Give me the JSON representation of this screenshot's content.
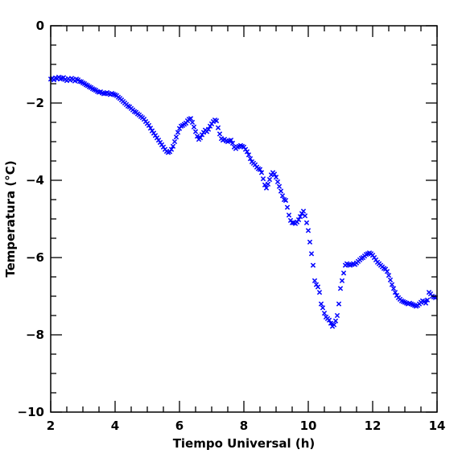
{
  "chart_data": {
    "type": "scatter",
    "title": "",
    "xlabel": "Tiempo Universal (h)",
    "ylabel": "Temperatura (°C)",
    "xlim": [
      2,
      14
    ],
    "ylim": [
      -10,
      0
    ],
    "xticks": [
      2,
      4,
      6,
      8,
      10,
      12,
      14
    ],
    "yticks": [
      -10,
      -8,
      -6,
      -4,
      -2,
      0
    ],
    "xtick_labels": [
      "2",
      "4",
      "6",
      "8",
      "10",
      "12",
      "14"
    ],
    "ytick_labels": [
      "−10",
      "−8",
      "−6",
      "−4",
      "−2",
      "0"
    ],
    "grid": false,
    "legend": "none",
    "marker": "x",
    "color": "#0000ff",
    "points": [
      [
        2.0,
        -1.38
      ],
      [
        2.05,
        -1.36
      ],
      [
        2.1,
        -1.4
      ],
      [
        2.15,
        -1.35
      ],
      [
        2.2,
        -1.37
      ],
      [
        2.25,
        -1.33
      ],
      [
        2.3,
        -1.38
      ],
      [
        2.35,
        -1.36
      ],
      [
        2.4,
        -1.34
      ],
      [
        2.45,
        -1.39
      ],
      [
        2.5,
        -1.42
      ],
      [
        2.55,
        -1.37
      ],
      [
        2.6,
        -1.41
      ],
      [
        2.65,
        -1.36
      ],
      [
        2.7,
        -1.39
      ],
      [
        2.75,
        -1.43
      ],
      [
        2.8,
        -1.38
      ],
      [
        2.85,
        -1.4
      ],
      [
        2.9,
        -1.44
      ],
      [
        2.95,
        -1.45
      ],
      [
        3.0,
        -1.48
      ],
      [
        3.05,
        -1.5
      ],
      [
        3.1,
        -1.53
      ],
      [
        3.15,
        -1.55
      ],
      [
        3.2,
        -1.58
      ],
      [
        3.25,
        -1.6
      ],
      [
        3.3,
        -1.63
      ],
      [
        3.35,
        -1.65
      ],
      [
        3.4,
        -1.67
      ],
      [
        3.45,
        -1.7
      ],
      [
        3.5,
        -1.72
      ],
      [
        3.55,
        -1.71
      ],
      [
        3.6,
        -1.74
      ],
      [
        3.65,
        -1.76
      ],
      [
        3.7,
        -1.75
      ],
      [
        3.75,
        -1.73
      ],
      [
        3.8,
        -1.76
      ],
      [
        3.85,
        -1.78
      ],
      [
        3.9,
        -1.75
      ],
      [
        3.95,
        -1.77
      ],
      [
        4.0,
        -1.79
      ],
      [
        4.05,
        -1.81
      ],
      [
        4.1,
        -1.85
      ],
      [
        4.15,
        -1.88
      ],
      [
        4.2,
        -1.92
      ],
      [
        4.25,
        -1.96
      ],
      [
        4.3,
        -2.0
      ],
      [
        4.35,
        -2.04
      ],
      [
        4.4,
        -2.08
      ],
      [
        4.45,
        -2.1
      ],
      [
        4.5,
        -2.14
      ],
      [
        4.55,
        -2.18
      ],
      [
        4.6,
        -2.22
      ],
      [
        4.65,
        -2.24
      ],
      [
        4.7,
        -2.28
      ],
      [
        4.75,
        -2.31
      ],
      [
        4.8,
        -2.35
      ],
      [
        4.85,
        -2.38
      ],
      [
        4.9,
        -2.42
      ],
      [
        4.95,
        -2.48
      ],
      [
        5.0,
        -2.53
      ],
      [
        5.05,
        -2.58
      ],
      [
        5.1,
        -2.65
      ],
      [
        5.15,
        -2.72
      ],
      [
        5.2,
        -2.78
      ],
      [
        5.25,
        -2.84
      ],
      [
        5.3,
        -2.9
      ],
      [
        5.35,
        -2.96
      ],
      [
        5.4,
        -3.02
      ],
      [
        5.45,
        -3.08
      ],
      [
        5.5,
        -3.14
      ],
      [
        5.55,
        -3.2
      ],
      [
        5.6,
        -3.25
      ],
      [
        5.65,
        -3.28
      ],
      [
        5.7,
        -3.26
      ],
      [
        5.75,
        -3.2
      ],
      [
        5.8,
        -3.12
      ],
      [
        5.85,
        -3.0
      ],
      [
        5.9,
        -2.88
      ],
      [
        5.95,
        -2.76
      ],
      [
        6.0,
        -2.66
      ],
      [
        6.05,
        -2.6
      ],
      [
        6.1,
        -2.58
      ],
      [
        6.15,
        -2.55
      ],
      [
        6.2,
        -2.52
      ],
      [
        6.25,
        -2.46
      ],
      [
        6.3,
        -2.42
      ],
      [
        6.35,
        -2.4
      ],
      [
        6.4,
        -2.5
      ],
      [
        6.45,
        -2.62
      ],
      [
        6.5,
        -2.74
      ],
      [
        6.55,
        -2.86
      ],
      [
        6.6,
        -2.94
      ],
      [
        6.65,
        -2.9
      ],
      [
        6.7,
        -2.82
      ],
      [
        6.75,
        -2.76
      ],
      [
        6.8,
        -2.7
      ],
      [
        6.85,
        -2.74
      ],
      [
        6.9,
        -2.68
      ],
      [
        6.95,
        -2.6
      ],
      [
        7.0,
        -2.54
      ],
      [
        7.05,
        -2.48
      ],
      [
        7.1,
        -2.44
      ],
      [
        7.15,
        -2.46
      ],
      [
        7.2,
        -2.64
      ],
      [
        7.25,
        -2.8
      ],
      [
        7.3,
        -2.92
      ],
      [
        7.35,
        -2.96
      ],
      [
        7.4,
        -2.94
      ],
      [
        7.45,
        -2.98
      ],
      [
        7.5,
        -3.0
      ],
      [
        7.55,
        -2.98
      ],
      [
        7.6,
        -2.96
      ],
      [
        7.65,
        -3.04
      ],
      [
        7.7,
        -3.14
      ],
      [
        7.75,
        -3.18
      ],
      [
        7.8,
        -3.14
      ],
      [
        7.85,
        -3.12
      ],
      [
        7.9,
        -3.1
      ],
      [
        7.95,
        -3.12
      ],
      [
        8.0,
        -3.14
      ],
      [
        8.05,
        -3.2
      ],
      [
        8.1,
        -3.26
      ],
      [
        8.15,
        -3.34
      ],
      [
        8.2,
        -3.44
      ],
      [
        8.25,
        -3.52
      ],
      [
        8.3,
        -3.56
      ],
      [
        8.35,
        -3.6
      ],
      [
        8.4,
        -3.66
      ],
      [
        8.45,
        -3.7
      ],
      [
        8.5,
        -3.72
      ],
      [
        8.55,
        -3.8
      ],
      [
        8.6,
        -3.96
      ],
      [
        8.65,
        -4.12
      ],
      [
        8.7,
        -4.2
      ],
      [
        8.75,
        -4.1
      ],
      [
        8.8,
        -3.98
      ],
      [
        8.85,
        -3.86
      ],
      [
        8.9,
        -3.8
      ],
      [
        8.95,
        -3.84
      ],
      [
        9.0,
        -3.92
      ],
      [
        9.05,
        -4.04
      ],
      [
        9.1,
        -4.16
      ],
      [
        9.15,
        -4.28
      ],
      [
        9.2,
        -4.4
      ],
      [
        9.25,
        -4.5
      ],
      [
        9.3,
        -4.52
      ],
      [
        9.35,
        -4.7
      ],
      [
        9.4,
        -4.9
      ],
      [
        9.45,
        -5.04
      ],
      [
        9.5,
        -5.1
      ],
      [
        9.55,
        -5.1
      ],
      [
        9.6,
        -5.12
      ],
      [
        9.65,
        -5.08
      ],
      [
        9.7,
        -5.02
      ],
      [
        9.75,
        -4.94
      ],
      [
        9.8,
        -4.86
      ],
      [
        9.85,
        -4.8
      ],
      [
        9.9,
        -4.92
      ],
      [
        9.95,
        -5.1
      ],
      [
        10.0,
        -5.3
      ],
      [
        10.05,
        -5.6
      ],
      [
        10.1,
        -5.9
      ],
      [
        10.15,
        -6.2
      ],
      [
        10.2,
        -6.6
      ],
      [
        10.25,
        -6.7
      ],
      [
        10.3,
        -6.76
      ],
      [
        10.35,
        -6.9
      ],
      [
        10.4,
        -7.2
      ],
      [
        10.45,
        -7.3
      ],
      [
        10.5,
        -7.44
      ],
      [
        10.55,
        -7.54
      ],
      [
        10.6,
        -7.58
      ],
      [
        10.65,
        -7.62
      ],
      [
        10.7,
        -7.7
      ],
      [
        10.75,
        -7.78
      ],
      [
        10.8,
        -7.74
      ],
      [
        10.85,
        -7.64
      ],
      [
        10.9,
        -7.5
      ],
      [
        10.95,
        -7.2
      ],
      [
        11.0,
        -6.8
      ],
      [
        11.05,
        -6.6
      ],
      [
        11.1,
        -6.4
      ],
      [
        11.15,
        -6.2
      ],
      [
        11.2,
        -6.16
      ],
      [
        11.25,
        -6.18
      ],
      [
        11.3,
        -6.2
      ],
      [
        11.35,
        -6.18
      ],
      [
        11.4,
        -6.16
      ],
      [
        11.45,
        -6.18
      ],
      [
        11.5,
        -6.14
      ],
      [
        11.55,
        -6.1
      ],
      [
        11.6,
        -6.06
      ],
      [
        11.65,
        -6.02
      ],
      [
        11.7,
        -6.0
      ],
      [
        11.75,
        -5.96
      ],
      [
        11.8,
        -5.92
      ],
      [
        11.85,
        -5.9
      ],
      [
        11.9,
        -5.88
      ],
      [
        11.95,
        -5.9
      ],
      [
        12.0,
        -5.94
      ],
      [
        12.05,
        -6.0
      ],
      [
        12.1,
        -6.06
      ],
      [
        12.15,
        -6.12
      ],
      [
        12.2,
        -6.16
      ],
      [
        12.25,
        -6.2
      ],
      [
        12.3,
        -6.24
      ],
      [
        12.35,
        -6.28
      ],
      [
        12.4,
        -6.3
      ],
      [
        12.45,
        -6.36
      ],
      [
        12.5,
        -6.46
      ],
      [
        12.55,
        -6.58
      ],
      [
        12.6,
        -6.7
      ],
      [
        12.65,
        -6.8
      ],
      [
        12.7,
        -6.9
      ],
      [
        12.75,
        -6.98
      ],
      [
        12.8,
        -7.04
      ],
      [
        12.85,
        -7.08
      ],
      [
        12.9,
        -7.12
      ],
      [
        12.95,
        -7.14
      ],
      [
        13.0,
        -7.16
      ],
      [
        13.05,
        -7.18
      ],
      [
        13.1,
        -7.2
      ],
      [
        13.15,
        -7.18
      ],
      [
        13.2,
        -7.2
      ],
      [
        13.25,
        -7.22
      ],
      [
        13.3,
        -7.24
      ],
      [
        13.35,
        -7.26
      ],
      [
        13.4,
        -7.24
      ],
      [
        13.45,
        -7.2
      ],
      [
        13.5,
        -7.16
      ],
      [
        13.55,
        -7.12
      ],
      [
        13.6,
        -7.14
      ],
      [
        13.65,
        -7.18
      ],
      [
        13.7,
        -7.1
      ],
      [
        13.75,
        -6.9
      ],
      [
        13.8,
        -6.94
      ],
      [
        13.85,
        -7.0
      ],
      [
        13.9,
        -7.02
      ],
      [
        13.95,
        -7.04
      ]
    ]
  }
}
